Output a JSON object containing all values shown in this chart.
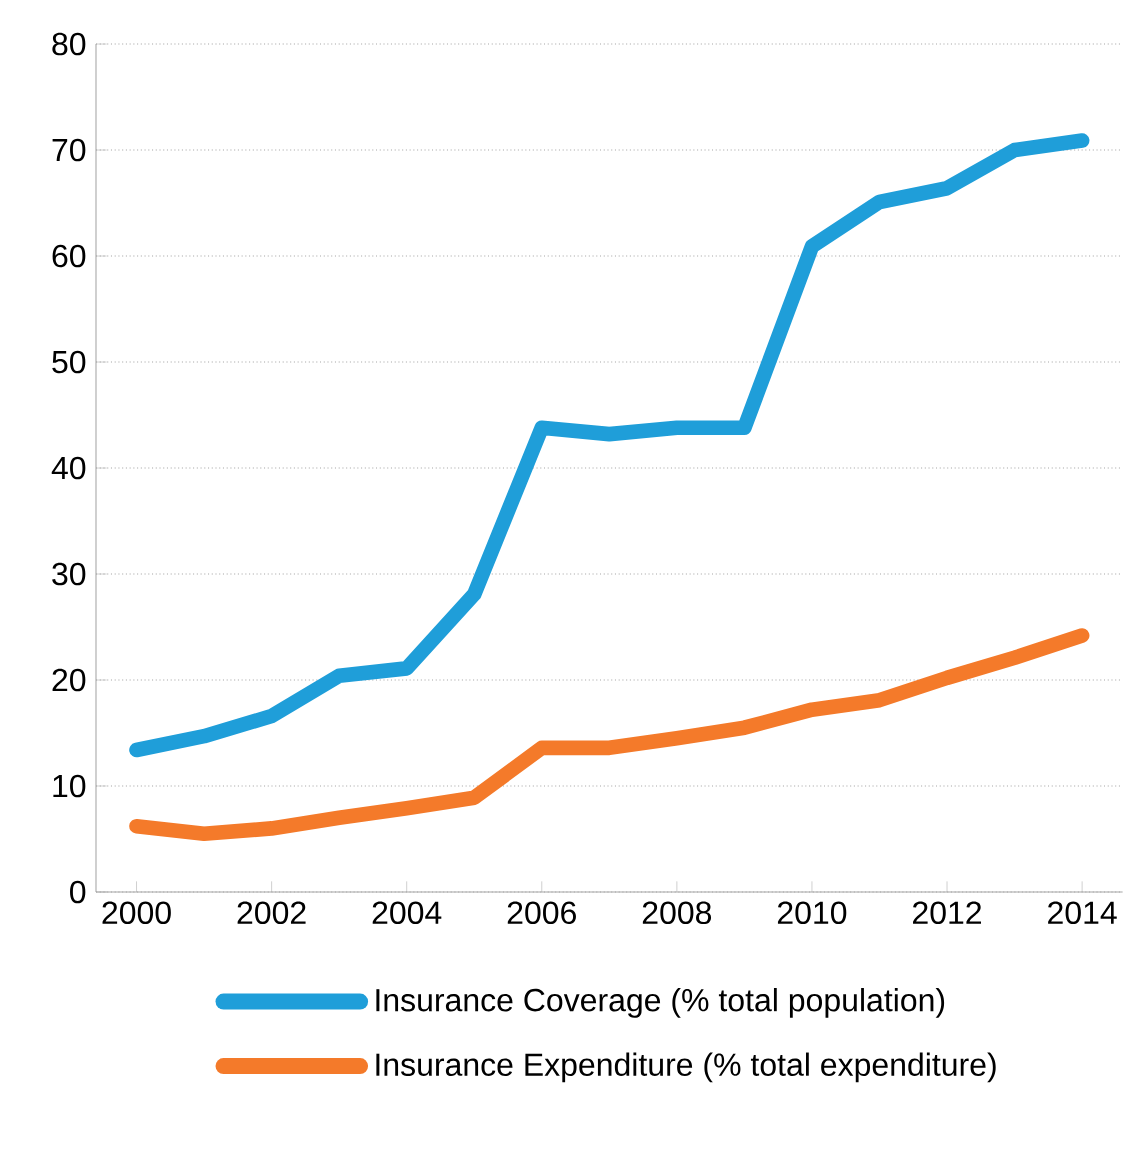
{
  "chart_data": {
    "type": "line",
    "x": [
      2000,
      2001,
      2002,
      2003,
      2004,
      2005,
      2006,
      2007,
      2008,
      2009,
      2010,
      2011,
      2012,
      2013,
      2014
    ],
    "series": [
      {
        "name": "Insurance Coverage (% total population)",
        "color": "#1f9ed9",
        "values": [
          13.4,
          14.7,
          16.6,
          20.4,
          21.1,
          28.1,
          43.8,
          43.2,
          43.8,
          43.8,
          60.9,
          65.1,
          66.4,
          70,
          70.9
        ]
      },
      {
        "name": "Insurance Expenditure (% total expenditure)",
        "color": "#f47a2a",
        "values": [
          6.2,
          5.5,
          6.0,
          7.0,
          7.9,
          8.9,
          13.6,
          13.6,
          14.5,
          15.5,
          17.2,
          18.1,
          20.2,
          22.1,
          24.2
        ]
      }
    ],
    "xlim": [
      1999.4,
      2014.6
    ],
    "xticks": [
      2000,
      2002,
      2004,
      2006,
      2008,
      2010,
      2012,
      2014
    ],
    "ylim": [
      0,
      80
    ],
    "yticks": [
      0,
      10,
      20,
      30,
      40,
      50,
      60,
      70,
      80
    ],
    "grid": "y",
    "legend": "bottom",
    "marker": "none",
    "line_style": "solid"
  }
}
